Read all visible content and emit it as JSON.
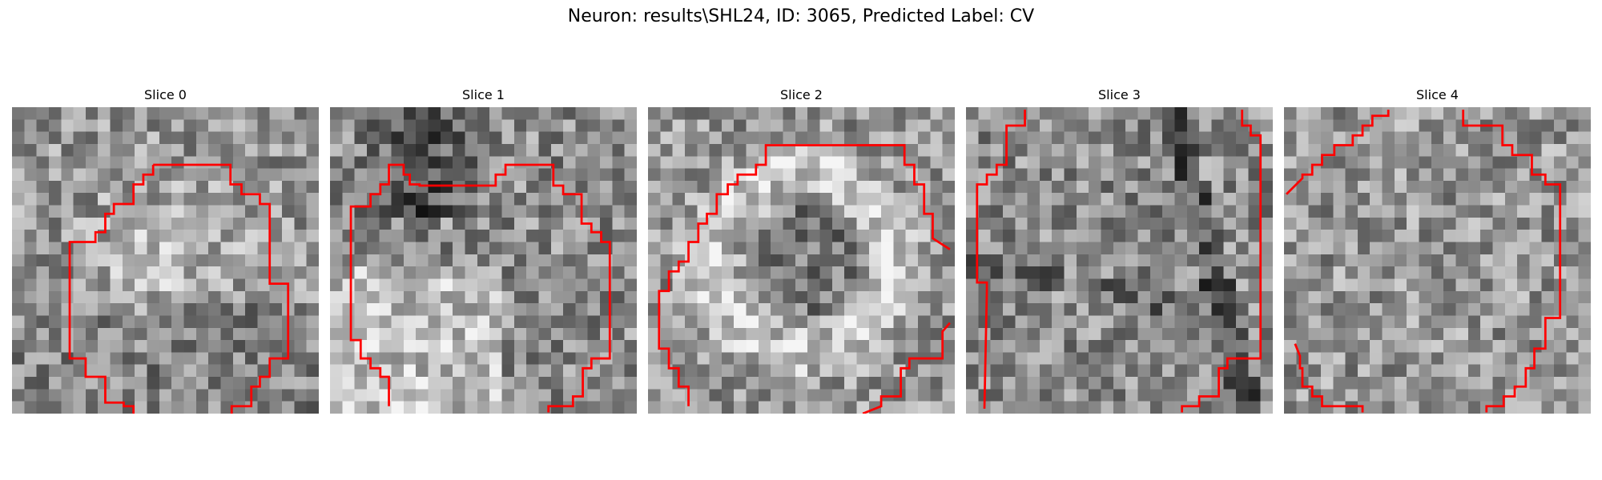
{
  "figure_title": "Neuron: results\\SHL24, ID: 3065, Predicted Label: CV",
  "grid_cells": 25,
  "contour_color": "#ff0000",
  "slices": [
    {
      "title": "Slice 0",
      "seed": 11,
      "pattern": "center-bright"
    },
    {
      "title": "Slice 1",
      "seed": 23,
      "pattern": "dark-top-bright-bottom"
    },
    {
      "title": "Slice 2",
      "seed": 37,
      "pattern": "bright-ring"
    },
    {
      "title": "Slice 3",
      "seed": 51,
      "pattern": "noisy-dark-streaks"
    },
    {
      "title": "Slice 4",
      "seed": 73,
      "pattern": "uniform-noise"
    }
  ]
}
